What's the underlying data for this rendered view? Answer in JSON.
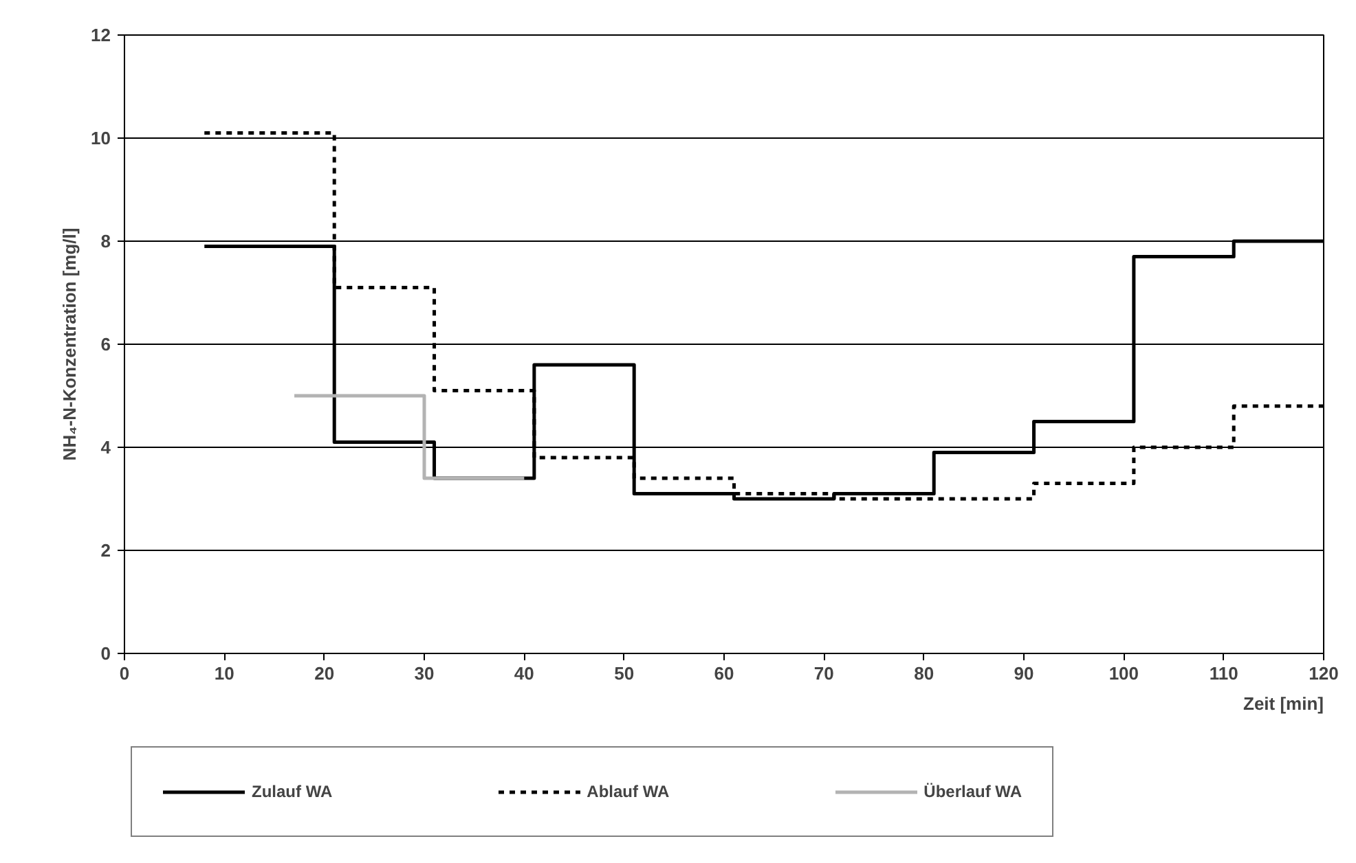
{
  "chart_data": {
    "type": "step",
    "xlabel": "Zeit [min]",
    "ylabel": "NH₄-N-Konzentration [mg/l]",
    "xlim": [
      0,
      120
    ],
    "ylim": [
      0,
      12
    ],
    "xticks": [
      0,
      10,
      20,
      30,
      40,
      50,
      60,
      70,
      80,
      90,
      100,
      110,
      120
    ],
    "yticks": [
      0,
      2,
      4,
      6,
      8,
      10,
      12
    ],
    "grid": "y",
    "legend": "bottom",
    "marker": "none",
    "series": [
      {
        "name": "Zulauf WA",
        "color": "#000000",
        "line_style": "solid",
        "x": [
          8,
          21,
          31,
          41,
          51,
          61,
          71,
          81,
          91,
          101,
          111,
          120
        ],
        "values": [
          7.9,
          4.1,
          3.4,
          5.6,
          3.1,
          3.0,
          3.1,
          3.9,
          4.5,
          7.7,
          8.0,
          8.0
        ]
      },
      {
        "name": "Ablauf WA",
        "color": "#000000",
        "line_style": "dashed",
        "x": [
          8,
          21,
          31,
          41,
          51,
          61,
          71,
          81,
          91,
          101,
          111,
          120
        ],
        "values": [
          10.1,
          7.1,
          5.1,
          3.8,
          3.4,
          3.1,
          3.0,
          3.0,
          3.3,
          4.0,
          4.8,
          4.8
        ]
      },
      {
        "name": "Überlauf WA",
        "color": "#b3b3b3",
        "line_style": "solid",
        "x": [
          17,
          30,
          40
        ],
        "values": [
          5.0,
          3.4,
          3.4
        ]
      }
    ]
  }
}
